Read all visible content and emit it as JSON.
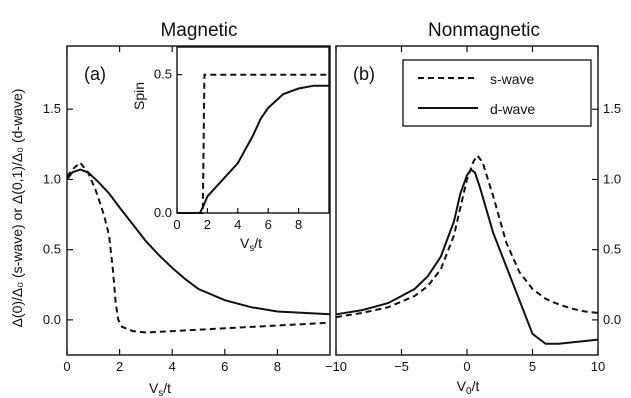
{
  "chart_data": [
    {
      "type": "line",
      "panel": "(a)",
      "title": "Magnetic",
      "xlabel": "V_s/t",
      "ylabel": "Δ(0)/Δ₀ (s-wave) or Δ(0,1)/Δ₀ (d-wave)",
      "xlim": [
        0,
        10
      ],
      "ylim": [
        -0.25,
        1.95
      ],
      "xticks": [
        0,
        2,
        4,
        6,
        8
      ],
      "yticks": [
        0.0,
        0.5,
        1.0,
        1.5
      ],
      "series": [
        {
          "name": "s-wave",
          "style": "dashed",
          "x": [
            0,
            0.2,
            0.5,
            0.8,
            1.1,
            1.4,
            1.6,
            1.75,
            1.85,
            1.95,
            2.1,
            2.5,
            3,
            4,
            5,
            6,
            7,
            8,
            9,
            10
          ],
          "y": [
            1.02,
            1.07,
            1.12,
            1.05,
            0.92,
            0.75,
            0.6,
            0.35,
            0.12,
            0.0,
            -0.05,
            -0.08,
            -0.09,
            -0.08,
            -0.07,
            -0.06,
            -0.05,
            -0.04,
            -0.03,
            -0.02
          ]
        },
        {
          "name": "d-wave",
          "style": "solid",
          "x": [
            0,
            0.2,
            0.5,
            0.8,
            1.2,
            1.6,
            2,
            2.5,
            3,
            3.5,
            4,
            4.5,
            5,
            6,
            7,
            8,
            9,
            10
          ],
          "y": [
            1.0,
            1.05,
            1.07,
            1.05,
            0.98,
            0.9,
            0.8,
            0.68,
            0.56,
            0.46,
            0.37,
            0.29,
            0.22,
            0.14,
            0.09,
            0.06,
            0.05,
            0.04
          ]
        }
      ],
      "inset": {
        "ylabel": "Spin",
        "xlabel": "V_s/t",
        "xlim": [
          0,
          10
        ],
        "ylim": [
          0,
          0.6
        ],
        "xticks": [
          0,
          2,
          4,
          6,
          8
        ],
        "yticks": [
          0.0,
          0.5
        ],
        "series": [
          {
            "name": "s-wave",
            "style": "dashed",
            "x": [
              0,
              1.7,
              1.8,
              10
            ],
            "y": [
              0,
              0,
              0.5,
              0.5
            ]
          },
          {
            "name": "d-wave",
            "style": "solid",
            "x": [
              0,
              1.5,
              1.7,
              2,
              3,
              4,
              5,
              5.5,
              6,
              7,
              8,
              9,
              10
            ],
            "y": [
              0,
              0,
              0.02,
              0.06,
              0.12,
              0.18,
              0.28,
              0.34,
              0.38,
              0.43,
              0.45,
              0.46,
              0.46
            ]
          }
        ]
      }
    },
    {
      "type": "line",
      "panel": "(b)",
      "title": "Nonmagnetic",
      "xlabel": "V_0/t",
      "xlim": [
        -10,
        10
      ],
      "ylim": [
        -0.25,
        1.95
      ],
      "xticks": [
        -10,
        -5,
        0,
        5,
        10
      ],
      "yticks": [
        0.0,
        0.5,
        1.0,
        1.5
      ],
      "legend": {
        "placement": "top-right",
        "entries": [
          "s-wave",
          "d-wave"
        ]
      },
      "series": [
        {
          "name": "s-wave",
          "style": "dashed",
          "x": [
            -10,
            -8,
            -6,
            -4,
            -3,
            -2,
            -1,
            -0.5,
            0,
            0.5,
            0.8,
            1.2,
            2,
            3,
            4,
            5,
            6,
            7,
            8,
            9,
            10
          ],
          "y": [
            0.02,
            0.05,
            0.09,
            0.17,
            0.24,
            0.36,
            0.6,
            0.8,
            1.0,
            1.13,
            1.17,
            1.12,
            0.88,
            0.55,
            0.34,
            0.22,
            0.15,
            0.11,
            0.08,
            0.06,
            0.05
          ]
        },
        {
          "name": "d-wave",
          "style": "solid",
          "x": [
            -10,
            -8,
            -6,
            -4,
            -3,
            -2,
            -1,
            -0.5,
            0,
            0.3,
            0.6,
            1,
            1.5,
            2,
            3,
            4,
            5,
            6,
            7,
            8,
            9,
            10
          ],
          "y": [
            0.04,
            0.07,
            0.12,
            0.22,
            0.31,
            0.45,
            0.7,
            0.9,
            1.03,
            1.07,
            1.05,
            0.94,
            0.78,
            0.62,
            0.38,
            0.14,
            -0.1,
            -0.17,
            -0.17,
            -0.16,
            -0.15,
            -0.14
          ]
        }
      ]
    }
  ]
}
